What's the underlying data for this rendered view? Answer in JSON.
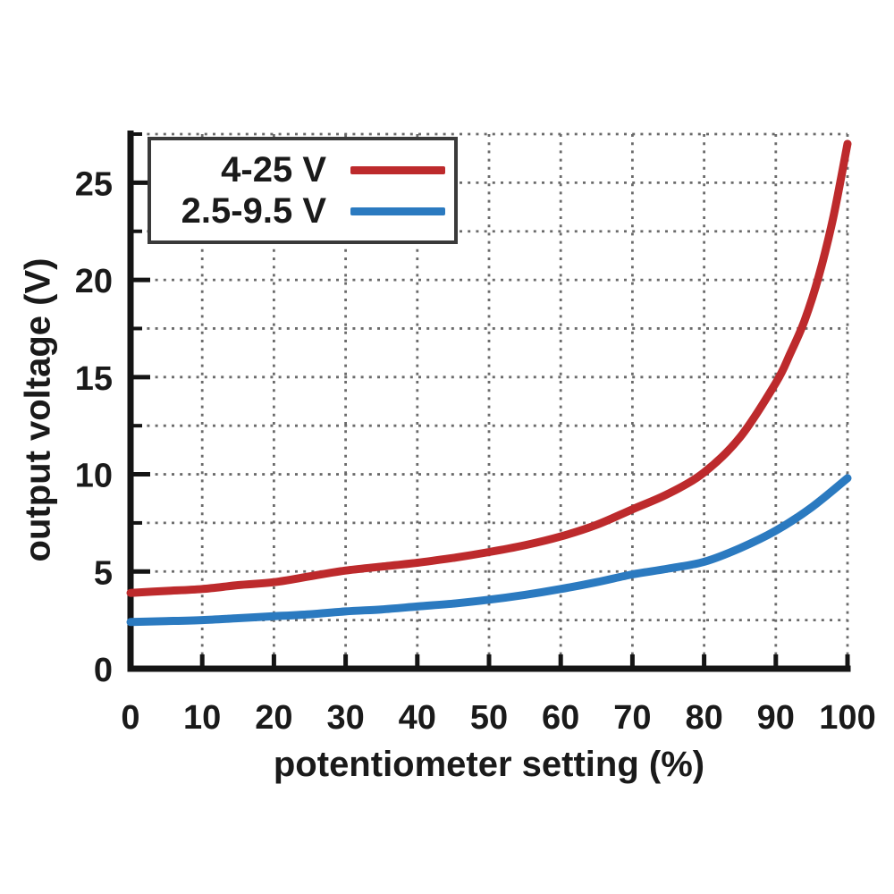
{
  "colors": {
    "background": "#ffffff",
    "axis": "#141414",
    "grid": "#6b6b6b",
    "text": "#1a1a1a",
    "legend_border": "#3a3a3a",
    "series_red": "#bd2a2c",
    "series_blue": "#2b7ac0"
  },
  "chart_data": {
    "type": "line",
    "title": "",
    "xlabel": "potentiometer setting (%)",
    "ylabel": "output voltage (V)",
    "xlim": [
      0,
      100
    ],
    "ylim": [
      0,
      27.5
    ],
    "x_ticks": [
      0,
      10,
      20,
      30,
      40,
      50,
      60,
      70,
      80,
      90,
      100
    ],
    "y_major_ticks": [
      0,
      5,
      10,
      15,
      20,
      25
    ],
    "y_minor_step": 2.5,
    "grid": "dotted gray grid, vertical every 10 %, horizontal every 2.5 V",
    "legend_position": "top-left",
    "series": [
      {
        "name": "4-25 V",
        "color": "#bd2a2c",
        "points": [
          [
            0,
            3.9
          ],
          [
            5,
            4.0
          ],
          [
            10,
            4.1
          ],
          [
            15,
            4.3
          ],
          [
            20,
            4.45
          ],
          [
            25,
            4.75
          ],
          [
            30,
            5.05
          ],
          [
            35,
            5.25
          ],
          [
            40,
            5.45
          ],
          [
            45,
            5.7
          ],
          [
            50,
            6.0
          ],
          [
            55,
            6.35
          ],
          [
            60,
            6.8
          ],
          [
            65,
            7.4
          ],
          [
            70,
            8.2
          ],
          [
            75,
            9.0
          ],
          [
            80,
            10.1
          ],
          [
            85,
            11.9
          ],
          [
            90,
            14.7
          ],
          [
            92,
            16.2
          ],
          [
            94,
            17.9
          ],
          [
            96,
            20.2
          ],
          [
            98,
            23.2
          ],
          [
            100,
            27.0
          ]
        ]
      },
      {
        "name": "2.5-9.5 V",
        "color": "#2b7ac0",
        "points": [
          [
            0,
            2.4
          ],
          [
            5,
            2.45
          ],
          [
            10,
            2.5
          ],
          [
            15,
            2.6
          ],
          [
            20,
            2.7
          ],
          [
            25,
            2.8
          ],
          [
            30,
            2.95
          ],
          [
            35,
            3.05
          ],
          [
            40,
            3.2
          ],
          [
            45,
            3.35
          ],
          [
            50,
            3.55
          ],
          [
            55,
            3.8
          ],
          [
            60,
            4.1
          ],
          [
            65,
            4.45
          ],
          [
            70,
            4.85
          ],
          [
            75,
            5.15
          ],
          [
            80,
            5.5
          ],
          [
            85,
            6.2
          ],
          [
            90,
            7.1
          ],
          [
            95,
            8.3
          ],
          [
            100,
            9.8
          ]
        ]
      }
    ]
  }
}
